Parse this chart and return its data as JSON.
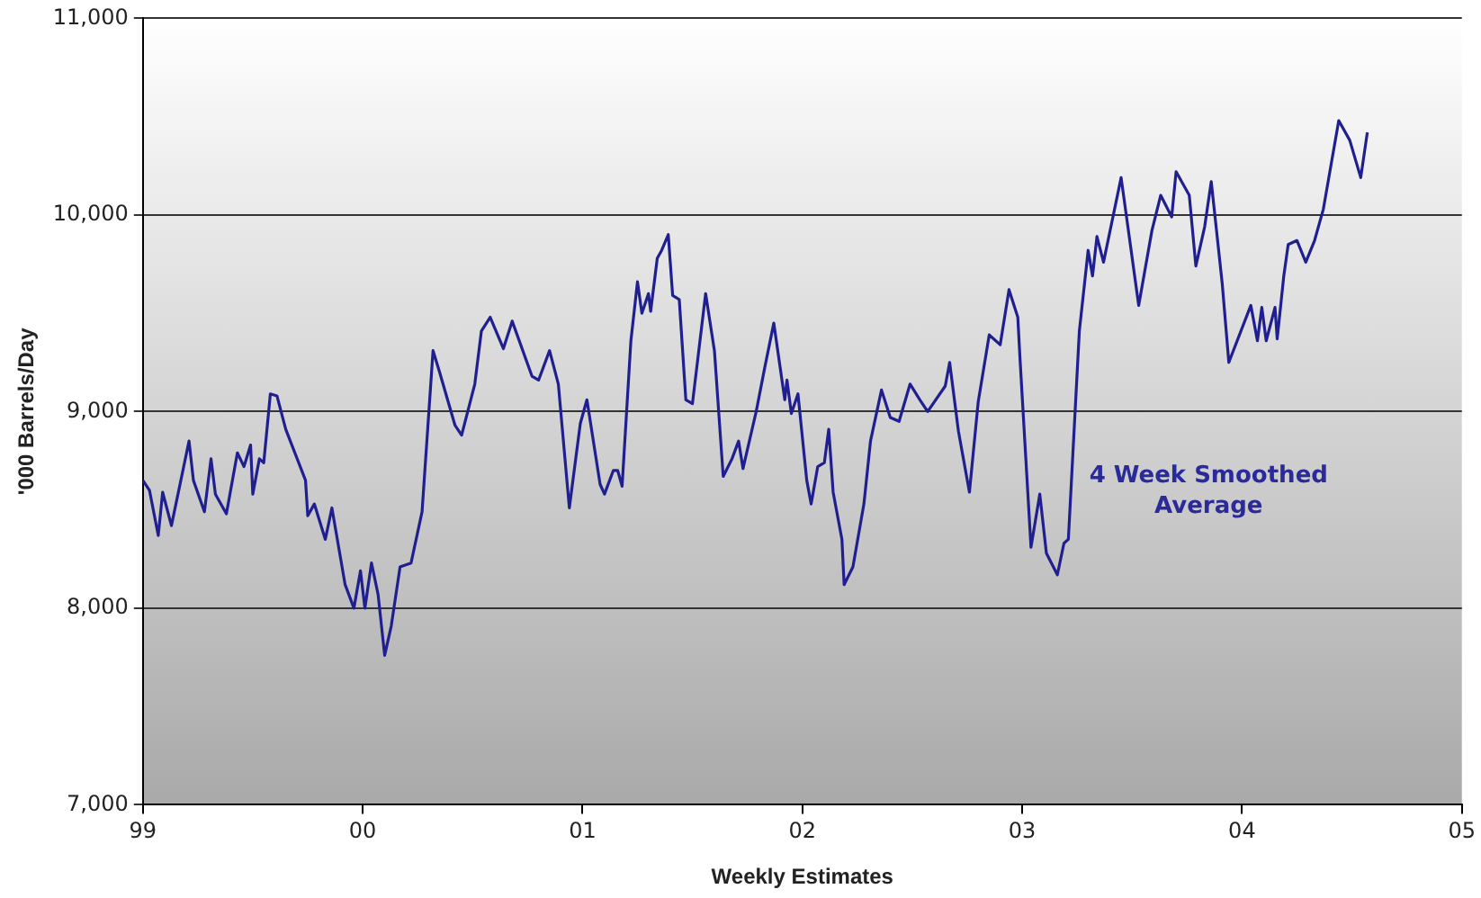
{
  "chart_data": {
    "type": "line",
    "xlabel": "Weekly Estimates",
    "ylabel": "'000 Barrels/Day",
    "annotations": [
      "4 Week Smoothed Average"
    ],
    "xlim": [
      1999,
      2005
    ],
    "xticks": [
      {
        "value": 1999,
        "label": "99"
      },
      {
        "value": 2000,
        "label": "00"
      },
      {
        "value": 2001,
        "label": "01"
      },
      {
        "value": 2002,
        "label": "02"
      },
      {
        "value": 2003,
        "label": "03"
      },
      {
        "value": 2004,
        "label": "04"
      },
      {
        "value": 2005,
        "label": "05"
      }
    ],
    "ylim": [
      7000,
      11000
    ],
    "yticks": [
      {
        "value": 7000,
        "label": "7,000"
      },
      {
        "value": 8000,
        "label": "8,000"
      },
      {
        "value": 9000,
        "label": "9,000"
      },
      {
        "value": 10000,
        "label": "10,000"
      },
      {
        "value": 11000,
        "label": "11,000"
      }
    ],
    "grid": "y",
    "legend": false,
    "marker": "none",
    "line_style": "solid",
    "series": [
      {
        "color": "#1f1f8f",
        "x": [
          1999.0,
          1999.03,
          1999.07,
          1999.09,
          1999.13,
          1999.21,
          1999.23,
          1999.28,
          1999.31,
          1999.33,
          1999.38,
          1999.43,
          1999.46,
          1999.49,
          1999.5,
          1999.53,
          1999.55,
          1999.58,
          1999.61,
          1999.65,
          1999.74,
          1999.75,
          1999.78,
          1999.83,
          1999.86,
          1999.92,
          1999.96,
          1999.99,
          2000.01,
          2000.04,
          2000.07,
          2000.1,
          2000.13,
          2000.17,
          2000.22,
          2000.27,
          2000.32,
          2000.35,
          2000.42,
          2000.45,
          2000.51,
          2000.54,
          2000.58,
          2000.64,
          2000.68,
          2000.77,
          2000.8,
          2000.85,
          2000.89,
          2000.94,
          2000.99,
          2001.02,
          2001.08,
          2001.1,
          2001.14,
          2001.16,
          2001.18,
          2001.22,
          2001.25,
          2001.27,
          2001.3,
          2001.31,
          2001.34,
          2001.36,
          2001.39,
          2001.41,
          2001.44,
          2001.47,
          2001.5,
          2001.56,
          2001.6,
          2001.64,
          2001.68,
          2001.71,
          2001.73,
          2001.79,
          2001.83,
          2001.87,
          2001.92,
          2001.93,
          2001.95,
          2001.98,
          2002.02,
          2002.04,
          2002.07,
          2002.1,
          2002.12,
          2002.14,
          2002.18,
          2002.19,
          2002.23,
          2002.28,
          2002.31,
          2002.36,
          2002.4,
          2002.44,
          2002.49,
          2002.54,
          2002.57,
          2002.65,
          2002.67,
          2002.71,
          2002.76,
          2002.8,
          2002.85,
          2002.9,
          2002.94,
          2002.98,
          2002.99,
          2003.04,
          2003.08,
          2003.11,
          2003.16,
          2003.19,
          2003.21,
          2003.26,
          2003.3,
          2003.32,
          2003.34,
          2003.37,
          2003.45,
          2003.53,
          2003.59,
          2003.63,
          2003.68,
          2003.7,
          2003.76,
          2003.79,
          2003.83,
          2003.86,
          2003.91,
          2003.94,
          2004.04,
          2004.07,
          2004.09,
          2004.11,
          2004.15,
          2004.16,
          2004.19,
          2004.21,
          2004.25,
          2004.29,
          2004.33,
          2004.37,
          2004.44,
          2004.49,
          2004.54,
          2004.57
        ],
        "values": [
          8650,
          8600,
          8370,
          8590,
          8420,
          8850,
          8650,
          8490,
          8760,
          8580,
          8480,
          8790,
          8720,
          8830,
          8580,
          8760,
          8740,
          9090,
          9080,
          8910,
          8650,
          8470,
          8530,
          8350,
          8510,
          8120,
          8000,
          8190,
          8000,
          8230,
          8070,
          7760,
          7910,
          8210,
          8230,
          8490,
          9310,
          9200,
          8930,
          8880,
          9140,
          9410,
          9480,
          9320,
          9460,
          9180,
          9160,
          9310,
          9140,
          8510,
          8940,
          9060,
          8630,
          8580,
          8700,
          8700,
          8620,
          9360,
          9660,
          9500,
          9600,
          9510,
          9780,
          9820,
          9900,
          9590,
          9570,
          9060,
          9040,
          9600,
          9310,
          8670,
          8760,
          8850,
          8710,
          9000,
          9230,
          9450,
          9060,
          9160,
          8990,
          9090,
          8650,
          8530,
          8720,
          8740,
          8910,
          8590,
          8350,
          8120,
          8210,
          8530,
          8850,
          9110,
          8970,
          8950,
          9140,
          9050,
          9000,
          9130,
          9250,
          8900,
          8590,
          9050,
          9390,
          9340,
          9620,
          9480,
          9270,
          8310,
          8580,
          8280,
          8170,
          8330,
          8350,
          9410,
          9820,
          9690,
          9890,
          9760,
          10190,
          9540,
          9920,
          10100,
          9990,
          10220,
          10100,
          9740,
          9940,
          10170,
          9650,
          9250,
          9540,
          9360,
          9530,
          9360,
          9530,
          9370,
          9690,
          9850,
          9870,
          9760,
          9870,
          10030,
          10480,
          10380,
          10190,
          10420
        ]
      }
    ]
  }
}
